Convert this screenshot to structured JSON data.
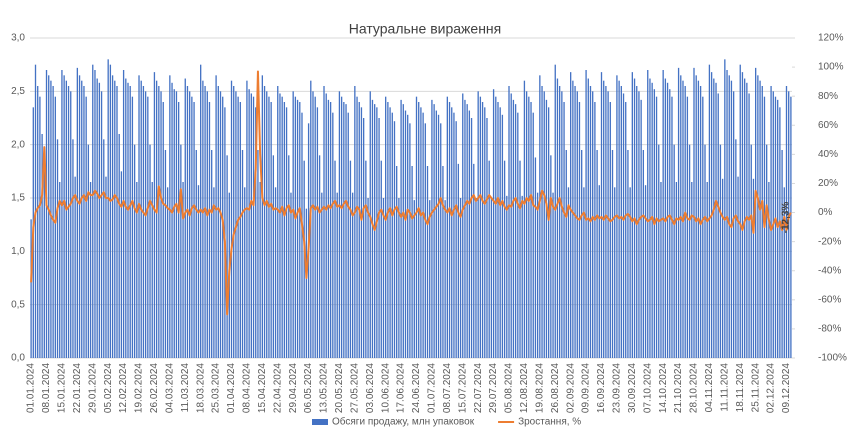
{
  "chart_data": {
    "type": "bar",
    "title": "Натуральне вираження",
    "annotation": "-12,3%",
    "grid": true,
    "legend": "bottom",
    "ylim": [
      0,
      3
    ],
    "yticks": [
      {
        "value": 0,
        "label": "0,0"
      },
      {
        "value": 0.5,
        "label": "0,5"
      },
      {
        "value": 1,
        "label": "1,0"
      },
      {
        "value": 1.5,
        "label": "1,5"
      },
      {
        "value": 2,
        "label": "2,0"
      },
      {
        "value": 2.5,
        "label": "2,5"
      },
      {
        "value": 3,
        "label": "3,0"
      }
    ],
    "y2lim": [
      -100,
      120
    ],
    "y2ticks": [
      {
        "value": -100,
        "label": "-100%"
      },
      {
        "value": -80,
        "label": "-80%"
      },
      {
        "value": -60,
        "label": "-60%"
      },
      {
        "value": -40,
        "label": "-40%"
      },
      {
        "value": -20,
        "label": "-20%"
      },
      {
        "value": 0,
        "label": "0%"
      },
      {
        "value": 20,
        "label": "20%"
      },
      {
        "value": 40,
        "label": "40%"
      },
      {
        "value": 60,
        "label": "60%"
      },
      {
        "value": 80,
        "label": "80%"
      },
      {
        "value": 100,
        "label": "100%"
      },
      {
        "value": 120,
        "label": "120%"
      }
    ],
    "categories": [
      "01.01.2024",
      null,
      null,
      null,
      null,
      null,
      null,
      "08.01.2024",
      null,
      null,
      null,
      null,
      null,
      null,
      "15.01.2024",
      null,
      null,
      null,
      null,
      null,
      null,
      "22.01.2024",
      null,
      null,
      null,
      null,
      null,
      null,
      "29.01.2024",
      null,
      null,
      null,
      null,
      null,
      null,
      "05.02.2024",
      null,
      null,
      null,
      null,
      null,
      null,
      "12.02.2024",
      null,
      null,
      null,
      null,
      null,
      null,
      "19.02.2024",
      null,
      null,
      null,
      null,
      null,
      null,
      "26.02.2024",
      null,
      null,
      null,
      null,
      null,
      null,
      "04.03.2024",
      null,
      null,
      null,
      null,
      null,
      null,
      "11.03.2024",
      null,
      null,
      null,
      null,
      null,
      null,
      "18.03.2024",
      null,
      null,
      null,
      null,
      null,
      null,
      "25.03.2024",
      null,
      null,
      null,
      null,
      null,
      null,
      "01.04.2024",
      null,
      null,
      null,
      null,
      null,
      null,
      "08.04.2024",
      null,
      null,
      null,
      null,
      null,
      null,
      "15.04.2024",
      null,
      null,
      null,
      null,
      null,
      null,
      "22.04.2024",
      null,
      null,
      null,
      null,
      null,
      null,
      "29.04.2024",
      null,
      null,
      null,
      null,
      null,
      null,
      "06.05.2024",
      null,
      null,
      null,
      null,
      null,
      null,
      "13.05.2024",
      null,
      null,
      null,
      null,
      null,
      null,
      "20.05.2024",
      null,
      null,
      null,
      null,
      null,
      null,
      "27.05.2024",
      null,
      null,
      null,
      null,
      null,
      null,
      "03.06.2024",
      null,
      null,
      null,
      null,
      null,
      null,
      "10.06.2024",
      null,
      null,
      null,
      null,
      null,
      null,
      "17.06.2024",
      null,
      null,
      null,
      null,
      null,
      null,
      "24.06.2024",
      null,
      null,
      null,
      null,
      null,
      null,
      "01.07.2024",
      null,
      null,
      null,
      null,
      null,
      null,
      "08.07.2024",
      null,
      null,
      null,
      null,
      null,
      null,
      "15.07.2024",
      null,
      null,
      null,
      null,
      null,
      null,
      "22.07.2024",
      null,
      null,
      null,
      null,
      null,
      null,
      "29.07.2024",
      null,
      null,
      null,
      null,
      null,
      null,
      "05.08.2024",
      null,
      null,
      null,
      null,
      null,
      null,
      "12.08.2024",
      null,
      null,
      null,
      null,
      null,
      null,
      "19.08.2024",
      null,
      null,
      null,
      null,
      null,
      null,
      "26.08.2024",
      null,
      null,
      null,
      null,
      null,
      null,
      "02.09.2024",
      null,
      null,
      null,
      null,
      null,
      null,
      "09.09.2024",
      null,
      null,
      null,
      null,
      null,
      null,
      "16.09.2024",
      null,
      null,
      null,
      null,
      null,
      null,
      "23.09.2024",
      null,
      null,
      null,
      null,
      null,
      null,
      "30.09.2024",
      null,
      null,
      null,
      null,
      null,
      null,
      "07.10.2024",
      null,
      null,
      null,
      null,
      null,
      null,
      "14.10.2024",
      null,
      null,
      null,
      null,
      null,
      null,
      "21.10.2024",
      null,
      null,
      null,
      null,
      null,
      null,
      "28.10.2024",
      null,
      null,
      null,
      null,
      null,
      null,
      "04.11.2024",
      null,
      null,
      null,
      null,
      null,
      null,
      "11.11.2024",
      null,
      null,
      null,
      null,
      null,
      null,
      "18.11.2024",
      null,
      null,
      null,
      null,
      null,
      null,
      "25.11.2024",
      null,
      null,
      null,
      null,
      null,
      null,
      "02.12.2024",
      null,
      null,
      null,
      null,
      null,
      null,
      "09.12.2024",
      null,
      null
    ],
    "series": [
      {
        "name": "Обсяги продажу, млн упаковок",
        "color": "#4472c4",
        "type": "bar",
        "axis": "y",
        "values": [
          1.3,
          2.35,
          2.75,
          2.55,
          2.45,
          2.1,
          1.75,
          2.7,
          2.65,
          2.6,
          2.55,
          2.45,
          2.05,
          1.65,
          2.7,
          2.65,
          2.6,
          2.55,
          2.5,
          2.05,
          1.7,
          2.72,
          2.65,
          2.6,
          2.55,
          2.45,
          2.0,
          1.65,
          2.75,
          2.7,
          2.62,
          2.58,
          2.5,
          2.05,
          1.7,
          2.8,
          2.75,
          2.65,
          2.6,
          2.55,
          2.1,
          1.75,
          2.7,
          2.62,
          2.58,
          2.55,
          2.45,
          2.0,
          1.65,
          2.65,
          2.6,
          2.55,
          2.5,
          2.45,
          2.0,
          1.65,
          2.68,
          2.6,
          2.55,
          2.5,
          2.4,
          1.95,
          1.6,
          2.65,
          2.58,
          2.52,
          2.5,
          2.4,
          2.0,
          1.65,
          2.62,
          2.55,
          2.5,
          2.45,
          2.4,
          1.95,
          1.62,
          2.75,
          2.6,
          2.55,
          2.5,
          2.4,
          1.95,
          1.6,
          2.65,
          2.55,
          2.5,
          2.45,
          2.35,
          1.9,
          1.55,
          2.6,
          2.55,
          2.5,
          2.45,
          2.4,
          1.95,
          1.6,
          2.6,
          2.52,
          2.48,
          2.45,
          2.35,
          1.95,
          1.65,
          2.65,
          2.55,
          2.5,
          2.45,
          2.4,
          1.9,
          1.6,
          2.55,
          2.48,
          2.45,
          2.4,
          2.35,
          1.9,
          1.55,
          2.5,
          2.45,
          2.42,
          2.4,
          2.3,
          1.85,
          1.4,
          2.2,
          2.6,
          2.5,
          2.45,
          2.35,
          1.9,
          1.55,
          2.55,
          2.48,
          2.42,
          2.4,
          2.3,
          1.85,
          1.55,
          2.5,
          2.45,
          2.4,
          2.38,
          2.3,
          1.85,
          1.55,
          2.55,
          2.45,
          2.4,
          2.35,
          2.25,
          1.85,
          1.5,
          2.5,
          2.42,
          2.38,
          2.35,
          2.25,
          1.85,
          1.5,
          2.45,
          2.4,
          2.35,
          2.3,
          2.22,
          1.8,
          1.5,
          2.42,
          2.38,
          2.32,
          2.28,
          2.2,
          1.8,
          1.48,
          2.45,
          2.4,
          2.35,
          2.3,
          2.2,
          1.8,
          1.48,
          2.42,
          2.38,
          2.32,
          2.28,
          2.2,
          1.8,
          1.48,
          2.45,
          2.4,
          2.35,
          2.3,
          2.22,
          1.82,
          1.5,
          2.48,
          2.42,
          2.38,
          2.32,
          2.25,
          1.82,
          1.5,
          2.5,
          2.45,
          2.4,
          2.35,
          2.25,
          1.85,
          1.5,
          2.52,
          2.45,
          2.4,
          2.35,
          2.28,
          1.85,
          1.52,
          2.55,
          2.48,
          2.42,
          2.38,
          2.3,
          1.85,
          1.52,
          2.6,
          2.5,
          2.45,
          2.4,
          2.3,
          1.88,
          1.55,
          2.65,
          2.55,
          2.5,
          2.42,
          2.35,
          1.9,
          1.55,
          2.75,
          2.62,
          2.55,
          2.5,
          2.4,
          1.95,
          1.6,
          2.68,
          2.6,
          2.55,
          2.5,
          2.4,
          1.95,
          1.6,
          2.7,
          2.62,
          2.55,
          2.5,
          2.4,
          1.95,
          1.62,
          2.68,
          2.6,
          2.55,
          2.5,
          2.4,
          1.95,
          1.6,
          2.65,
          2.6,
          2.55,
          2.48,
          2.4,
          1.95,
          1.6,
          2.68,
          2.62,
          2.55,
          2.5,
          2.42,
          1.95,
          1.62,
          2.7,
          2.62,
          2.58,
          2.52,
          2.45,
          2.0,
          1.65,
          2.7,
          2.62,
          2.58,
          2.52,
          2.45,
          2.0,
          1.65,
          2.72,
          2.65,
          2.6,
          2.55,
          2.45,
          2.0,
          1.65,
          2.72,
          2.65,
          2.6,
          2.55,
          2.45,
          2.0,
          1.65,
          2.75,
          2.68,
          2.62,
          2.58,
          2.48,
          2.0,
          1.68,
          2.8,
          2.7,
          2.65,
          2.6,
          2.5,
          2.05,
          1.7,
          2.75,
          2.68,
          2.62,
          2.58,
          2.48,
          2.0,
          1.68,
          2.72,
          2.65,
          2.6,
          2.55,
          2.45,
          2.0,
          1.65,
          2.55,
          2.5,
          2.45,
          2.42,
          2.35,
          1.95,
          1.6,
          2.55,
          2.5,
          2.45
        ]
      },
      {
        "name": "Зростання, %",
        "color": "#ed7d31",
        "type": "line",
        "axis": "y2",
        "values": [
          -48,
          -10,
          0,
          3,
          5,
          12,
          45,
          5,
          2,
          -2,
          -5,
          -7,
          3,
          8,
          5,
          8,
          2,
          4,
          6,
          10,
          12,
          8,
          6,
          10,
          12,
          8,
          14,
          12,
          12,
          15,
          13,
          10,
          12,
          14,
          10,
          10,
          8,
          9,
          12,
          10,
          6,
          4,
          8,
          4,
          2,
          5,
          8,
          3,
          0,
          6,
          2,
          0,
          -2,
          3,
          8,
          5,
          2,
          0,
          18,
          10,
          6,
          5,
          3,
          2,
          0,
          4,
          6,
          0,
          16,
          -4,
          0,
          2,
          -2,
          3,
          5,
          2,
          0,
          2,
          0,
          3,
          -2,
          2,
          0,
          5,
          2,
          3,
          0,
          -5,
          -20,
          -70,
          -40,
          -25,
          -15,
          -10,
          -5,
          -3,
          0,
          2,
          3,
          2,
          8,
          5,
          30,
          97,
          40,
          10,
          5,
          8,
          4,
          6,
          2,
          3,
          2,
          0,
          4,
          -2,
          3,
          5,
          0,
          2,
          -4,
          0,
          3,
          -8,
          -20,
          -45,
          -25,
          3,
          5,
          2,
          4,
          0,
          2,
          4,
          2,
          5,
          3,
          6,
          8,
          4,
          5,
          3,
          6,
          8,
          4,
          2,
          -2,
          0,
          4,
          2,
          -5,
          3,
          5,
          0,
          -3,
          -8,
          -12,
          -6,
          0,
          2,
          -2,
          -5,
          0,
          3,
          -2,
          2,
          4,
          0,
          -3,
          0,
          -5,
          2,
          0,
          -4,
          -2,
          0,
          3,
          -2,
          0,
          -5,
          -8,
          -3,
          0,
          2,
          4,
          6,
          10,
          5,
          2,
          0,
          3,
          -2,
          2,
          5,
          0,
          -3,
          2,
          5,
          8,
          6,
          10,
          12,
          8,
          10,
          12,
          8,
          6,
          9,
          12,
          10,
          8,
          6,
          10,
          5,
          8,
          4,
          2,
          5,
          4,
          8,
          10,
          6,
          3,
          8,
          6,
          10,
          8,
          12,
          5,
          4,
          2,
          8,
          15,
          12,
          6,
          -5,
          10,
          4,
          2,
          6,
          10,
          4,
          0,
          -3,
          5,
          2,
          0,
          -2,
          -4,
          -5,
          -2,
          0,
          -5,
          -4,
          -6,
          -3,
          -5,
          -2,
          -4,
          -3,
          -5,
          -2,
          -4,
          -6,
          -5,
          -3,
          -2,
          -4,
          -3,
          -5,
          -2,
          -1,
          -3,
          -6,
          -4,
          -8,
          -5,
          -3,
          -2,
          -4,
          -6,
          -5,
          -3,
          -8,
          -4,
          -6,
          -5,
          -4,
          -6,
          -3,
          -2,
          -5,
          -8,
          -4,
          -5,
          -3,
          -6,
          0,
          -4,
          -5,
          -2,
          -3,
          -6,
          -4,
          -8,
          -5,
          -3,
          -6,
          -4,
          -2,
          2,
          8,
          4,
          0,
          -3,
          -5,
          -3,
          -8,
          -10,
          -4,
          -2,
          -6,
          -8,
          -12,
          -6,
          -3,
          -5,
          -2,
          -14,
          15,
          10,
          2,
          8,
          -10,
          5,
          -5,
          -12,
          -8,
          -4,
          -10,
          -6,
          -12,
          -3,
          -12,
          -3,
          0
        ]
      }
    ]
  }
}
